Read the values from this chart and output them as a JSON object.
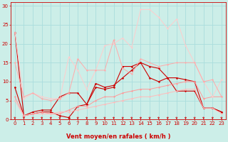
{
  "background_color": "#cceee8",
  "grid_color": "#aadddd",
  "x_label": "Vent moyen/en rafales ( km/h )",
  "x_ticks": [
    0,
    1,
    2,
    3,
    4,
    5,
    6,
    7,
    8,
    9,
    10,
    11,
    12,
    13,
    14,
    15,
    16,
    17,
    18,
    19,
    20,
    21,
    22,
    23
  ],
  "y_ticks": [
    0,
    5,
    10,
    15,
    20,
    25,
    30
  ],
  "ylim": [
    0,
    31
  ],
  "xlim": [
    -0.5,
    23.5
  ],
  "lines": [
    {
      "x": [
        0,
        1,
        2,
        3,
        4,
        5,
        6,
        7,
        8,
        9,
        10,
        11,
        12,
        13,
        14,
        15,
        16,
        17,
        18,
        19,
        20,
        21,
        22,
        23
      ],
      "y": [
        23,
        1,
        1.5,
        2,
        2,
        1,
        0.5,
        3.5,
        4,
        9.5,
        8.5,
        9,
        11,
        13,
        15,
        14,
        13.5,
        11,
        11,
        10.5,
        10,
        3,
        3,
        2
      ],
      "color": "#cc0000",
      "lw": 0.8,
      "marker": "D",
      "ms": 1.5
    },
    {
      "x": [
        0,
        1,
        2,
        3,
        4,
        5,
        6,
        7,
        8,
        9,
        10,
        11,
        12,
        13,
        14,
        15,
        16,
        17,
        18,
        19,
        20,
        21,
        22,
        23
      ],
      "y": [
        8.5,
        1,
        2,
        2.5,
        2.5,
        6,
        7,
        7,
        4,
        8.5,
        8,
        8.5,
        14,
        14,
        15,
        11,
        10,
        11,
        7.5,
        7.5,
        7.5,
        3,
        3,
        2
      ],
      "color": "#cc0000",
      "lw": 0.8,
      "marker": "D",
      "ms": 1.5
    },
    {
      "x": [
        0,
        1,
        2,
        3,
        4,
        5,
        6,
        7,
        8,
        9,
        10,
        11,
        12,
        13,
        14,
        15,
        16,
        17,
        18,
        19,
        20,
        21,
        22,
        23
      ],
      "y": [
        6,
        1,
        1.5,
        2,
        1.5,
        1.5,
        2.5,
        3.5,
        3.5,
        5,
        6,
        6,
        7,
        7.5,
        8,
        8,
        8.5,
        9,
        9.5,
        10,
        10,
        5.5,
        6,
        6
      ],
      "color": "#ff9999",
      "lw": 0.7,
      "marker": "D",
      "ms": 1.2
    },
    {
      "x": [
        0,
        1,
        2,
        3,
        4,
        5,
        6,
        7,
        8,
        9,
        10,
        11,
        12,
        13,
        14,
        15,
        16,
        17,
        18,
        19,
        20,
        21,
        22,
        23
      ],
      "y": [
        5,
        1,
        1.5,
        1.5,
        1.5,
        2,
        2,
        2.5,
        3,
        3.5,
        4,
        4.5,
        5,
        5.5,
        6,
        6,
        6.5,
        7,
        7.5,
        8,
        8,
        3,
        3,
        1.5
      ],
      "color": "#ffbbbb",
      "lw": 0.7,
      "marker": "D",
      "ms": 1.2
    },
    {
      "x": [
        0,
        1,
        2,
        3,
        4,
        5,
        6,
        7,
        8,
        9,
        10,
        11,
        12,
        13,
        14,
        15,
        16,
        17,
        18,
        19,
        20,
        21,
        22,
        23
      ],
      "y": [
        23,
        5.5,
        7,
        6,
        5.5,
        5.5,
        16.5,
        13,
        8,
        13,
        19.5,
        20,
        21.5,
        19,
        29,
        29,
        27,
        24,
        26.5,
        19.5,
        15,
        10,
        6,
        10.5
      ],
      "color": "#ffcccc",
      "lw": 0.7,
      "marker": "D",
      "ms": 1.2
    },
    {
      "x": [
        0,
        1,
        2,
        3,
        4,
        5,
        6,
        7,
        8,
        9,
        10,
        11,
        12,
        13,
        14,
        15,
        16,
        17,
        18,
        19,
        20,
        21,
        22,
        23
      ],
      "y": [
        15,
        6,
        7,
        5.5,
        5,
        5.5,
        7,
        16,
        13,
        13,
        13,
        21,
        13.5,
        12,
        16,
        15,
        14,
        14.5,
        15,
        15,
        15,
        10,
        10.5,
        6
      ],
      "color": "#ffaaaa",
      "lw": 0.7,
      "marker": "D",
      "ms": 1.2
    }
  ],
  "tick_fontsize": 5,
  "axis_fontsize": 6,
  "tick_color": "#cc0000",
  "label_color": "#cc0000",
  "spine_color": "#cc0000"
}
